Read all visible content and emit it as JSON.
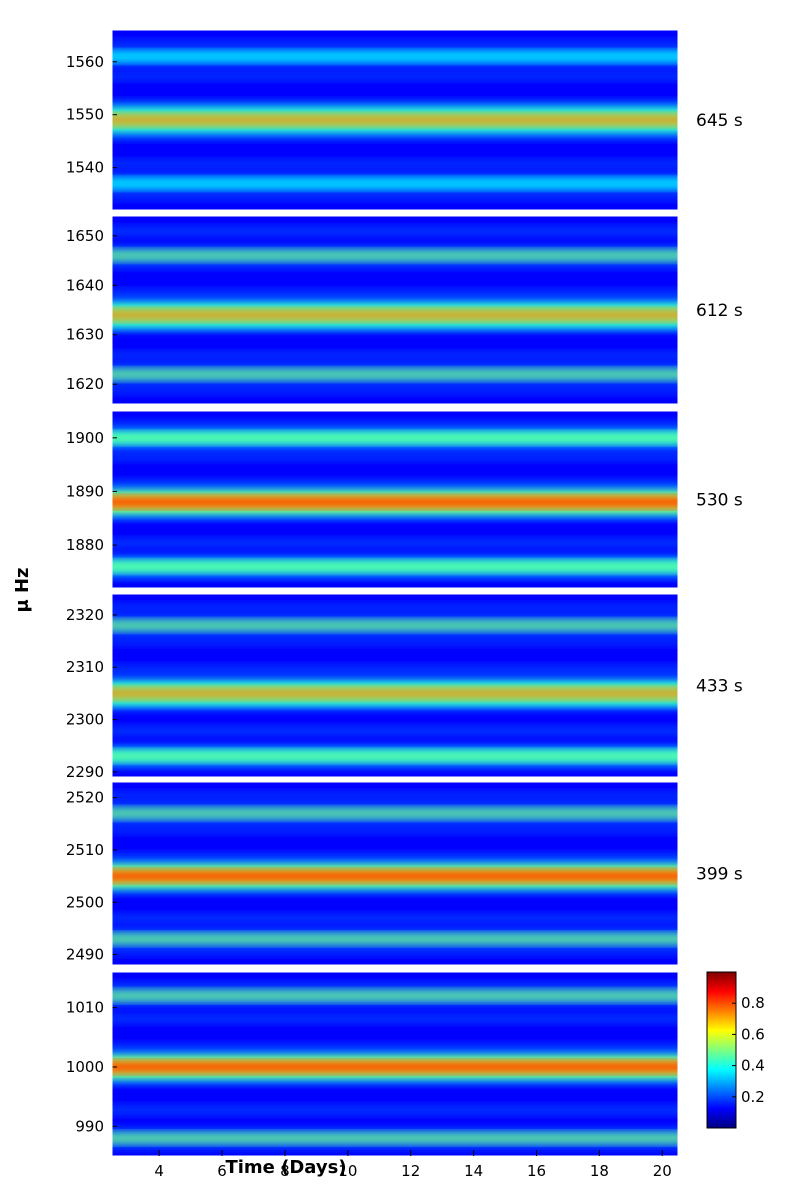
{
  "colors": {
    "colormap": [
      "#00007f",
      "#0000ff",
      "#007fff",
      "#00ffff",
      "#7fff7f",
      "#ffff00",
      "#ff7f00",
      "#ff0000",
      "#7f0000"
    ]
  },
  "chart_data": {
    "type": "heatmap",
    "title": "",
    "xlabel": "Time (Days)",
    "ylabel": "μ Hz",
    "xlim": [
      2.5,
      20.5
    ],
    "x_ticks": [
      4,
      6,
      8,
      10,
      12,
      14,
      16,
      18,
      20
    ],
    "colorbar": {
      "range": [
        0,
        1
      ],
      "ticks": [
        0.2,
        0.4,
        0.6,
        0.8
      ]
    },
    "panels": [
      {
        "period_label": "645 s",
        "ylim": [
          1532,
          1566
        ],
        "y_ticks": [
          1540,
          1550,
          1560
        ],
        "ridges": [
          {
            "freq": 1549,
            "amp": 0.85
          },
          {
            "freq": 1561,
            "amp": 0.45
          },
          {
            "freq": 1537,
            "amp": 0.4
          }
        ]
      },
      {
        "period_label": "612 s",
        "ylim": [
          1616,
          1654
        ],
        "y_ticks": [
          1620,
          1630,
          1640,
          1650
        ],
        "ridges": [
          {
            "freq": 1634,
            "amp": 0.85
          },
          {
            "freq": 1646,
            "amp": 0.5
          },
          {
            "freq": 1622,
            "amp": 0.5
          }
        ]
      },
      {
        "period_label": "530 s",
        "ylim": [
          1872,
          1905
        ],
        "y_ticks": [
          1880,
          1890,
          1900
        ],
        "ridges": [
          {
            "freq": 1888,
            "amp": 0.9
          },
          {
            "freq": 1900,
            "amp": 0.55
          },
          {
            "freq": 1876,
            "amp": 0.55
          }
        ]
      },
      {
        "period_label": "433 s",
        "ylim": [
          2289,
          2324
        ],
        "y_ticks": [
          2290,
          2300,
          2310,
          2320
        ],
        "ridges": [
          {
            "freq": 2305,
            "amp": 0.85
          },
          {
            "freq": 2318,
            "amp": 0.5
          },
          {
            "freq": 2293,
            "amp": 0.55
          }
        ]
      },
      {
        "period_label": "399 s",
        "ylim": [
          2488,
          2523
        ],
        "y_ticks": [
          2490,
          2500,
          2510,
          2520
        ],
        "ridges": [
          {
            "freq": 2505,
            "amp": 0.9
          },
          {
            "freq": 2517,
            "amp": 0.5
          },
          {
            "freq": 2493,
            "amp": 0.5
          }
        ]
      },
      {
        "period_label": "",
        "ylim": [
          985,
          1016
        ],
        "y_ticks": [
          990,
          1000,
          1010
        ],
        "ridges": [
          {
            "freq": 1000,
            "amp": 0.95
          },
          {
            "freq": 1012,
            "amp": 0.5
          },
          {
            "freq": 988,
            "amp": 0.5
          }
        ]
      }
    ]
  }
}
